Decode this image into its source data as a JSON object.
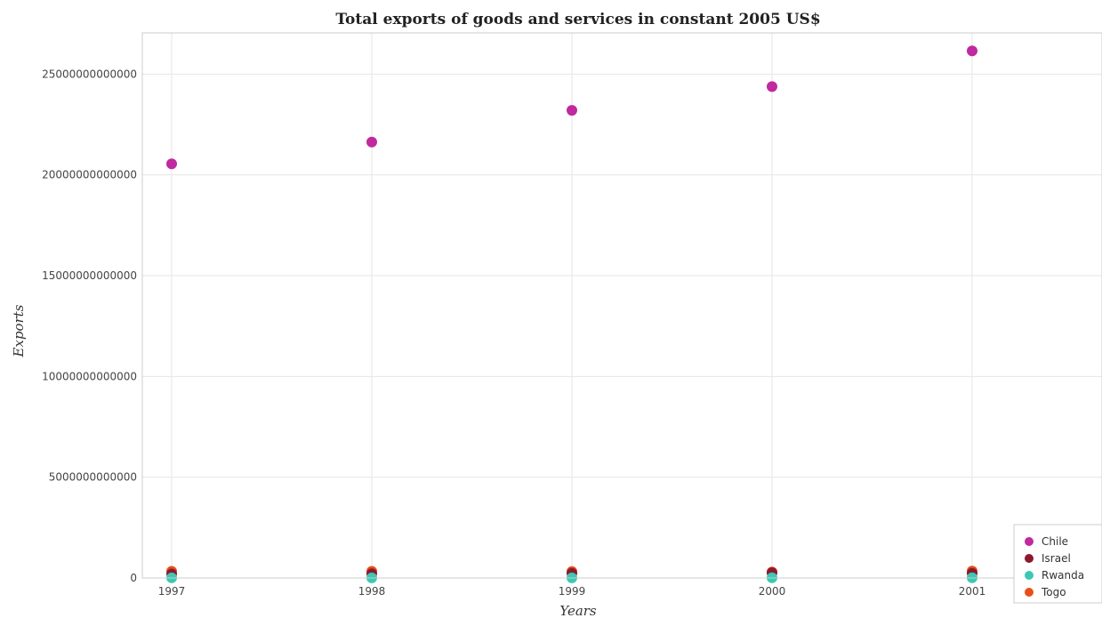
{
  "chart_data": {
    "type": "scatter",
    "title": "Total exports of goods and services in constant 2005 US$",
    "xlabel": "Years",
    "ylabel": "Exports",
    "x": [
      "1997",
      "1998",
      "1999",
      "2000",
      "2001"
    ],
    "ylim": [
      0,
      27000000000000
    ],
    "yticks": [
      0,
      5000000000000,
      10000000000000,
      15000000000000,
      20000000000000,
      25000000000000
    ],
    "ytick_labels": [
      "0",
      "5000000000000",
      "10000000000000",
      "15000000000000",
      "20000000000000",
      "25000000000000"
    ],
    "grid": true,
    "legend_position": "bottom-right",
    "series": [
      {
        "name": "Chile",
        "color": "#c0299f",
        "values": [
          20550000000000,
          21630000000000,
          23200000000000,
          24380000000000,
          26150000000000
        ]
      },
      {
        "name": "Israel",
        "color": "#8b1a2e",
        "values": [
          200000000000,
          210000000000,
          230000000000,
          260000000000,
          230000000000
        ]
      },
      {
        "name": "Rwanda",
        "color": "#3cc8b4",
        "values": [
          8000000000,
          7000000000,
          7500000000,
          9000000000,
          11000000000
        ]
      },
      {
        "name": "Togo",
        "color": "#e8501a",
        "values": [
          330000000000,
          330000000000,
          320000000000,
          300000000000,
          340000000000
        ]
      }
    ]
  }
}
